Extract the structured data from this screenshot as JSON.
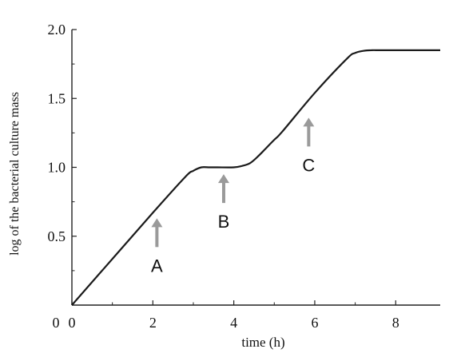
{
  "chart_data": {
    "type": "line",
    "xlabel": "time (h)",
    "ylabel": "log of the bacterial culture mass",
    "xlim": [
      0,
      9.1
    ],
    "ylim": [
      0,
      2.0
    ],
    "x_ticks": [
      0,
      2,
      4,
      6,
      8
    ],
    "x_tick_labels": [
      "0",
      "2",
      "4",
      "6",
      "8"
    ],
    "y_ticks": [
      0.5,
      1.0,
      1.5,
      2.0
    ],
    "y_tick_labels": [
      "0.5",
      "1.0",
      "1.5",
      "2.0"
    ],
    "grid": false,
    "series": [
      {
        "x": [
          0,
          2.0,
          2.8,
          3.0,
          3.2,
          3.4,
          3.6,
          4.0,
          4.2,
          4.4,
          4.6,
          4.8,
          5.0,
          5.2,
          6.0,
          6.8,
          7.0,
          7.2,
          7.4,
          7.6,
          8.0,
          9.1
        ],
        "y": [
          0,
          0.67,
          0.93,
          0.975,
          1.0,
          1.0,
          1.0,
          1.0,
          1.01,
          1.03,
          1.08,
          1.14,
          1.2,
          1.26,
          1.54,
          1.79,
          1.83,
          1.845,
          1.85,
          1.85,
          1.85,
          1.85
        ]
      }
    ],
    "annotations": [
      {
        "label": "A",
        "x": 2.1,
        "y": 0.63
      },
      {
        "label": "B",
        "x": 3.75,
        "y": 0.95
      },
      {
        "label": "C",
        "x": 5.85,
        "y": 1.36
      }
    ]
  }
}
